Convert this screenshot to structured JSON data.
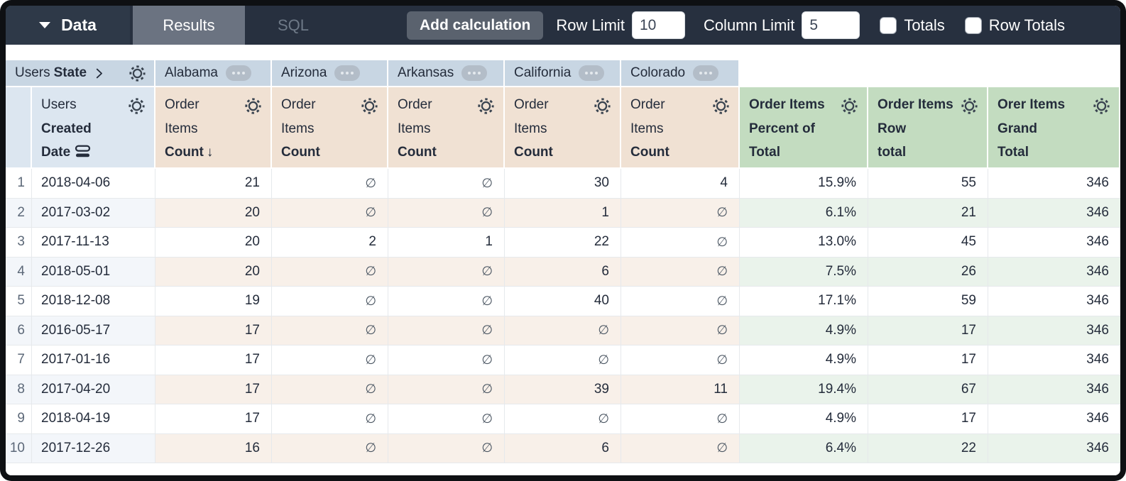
{
  "toolbar": {
    "data_label": "Data",
    "results_label": "Results",
    "sql_label": "SQL",
    "add_calculation_label": "Add calculation",
    "row_limit_label": "Row Limit",
    "row_limit_value": "10",
    "column_limit_label": "Column Limit",
    "column_limit_value": "5",
    "totals_label": "Totals",
    "row_totals_label": "Row Totals"
  },
  "pivot": {
    "dimension_prefix": "Users",
    "dimension_name": "State",
    "states": [
      "Alabama",
      "Arizona",
      "Arkansas",
      "California",
      "Colorado"
    ]
  },
  "columns": {
    "row_dimension": {
      "line1": "Users",
      "line2": "Created",
      "line3": "Date"
    },
    "measure": {
      "line1": "Order",
      "line2": "Items",
      "line3": "Count",
      "sort_arrow": "↓"
    },
    "calc_columns": [
      {
        "lines": [
          "Order Items",
          "Percent of",
          "Total"
        ]
      },
      {
        "lines": [
          "Order Items",
          "Row",
          "total"
        ]
      },
      {
        "lines": [
          "Orer Items",
          "Grand",
          "Total"
        ]
      }
    ]
  },
  "table": {
    "null_symbol": "∅",
    "rows": [
      {
        "index": "1",
        "date": "2018-04-06",
        "values": [
          "21",
          null,
          null,
          "30",
          "4"
        ],
        "percent": "15.9%",
        "row_total": "55",
        "grand_total": "346"
      },
      {
        "index": "2",
        "date": "2017-03-02",
        "values": [
          "20",
          null,
          null,
          "1",
          null
        ],
        "percent": "6.1%",
        "row_total": "21",
        "grand_total": "346"
      },
      {
        "index": "3",
        "date": "2017-11-13",
        "values": [
          "20",
          "2",
          "1",
          "22",
          null
        ],
        "percent": "13.0%",
        "row_total": "45",
        "grand_total": "346"
      },
      {
        "index": "4",
        "date": "2018-05-01",
        "values": [
          "20",
          null,
          null,
          "6",
          null
        ],
        "percent": "7.5%",
        "row_total": "26",
        "grand_total": "346"
      },
      {
        "index": "5",
        "date": "2018-12-08",
        "values": [
          "19",
          null,
          null,
          "40",
          null
        ],
        "percent": "17.1%",
        "row_total": "59",
        "grand_total": "346"
      },
      {
        "index": "6",
        "date": "2016-05-17",
        "values": [
          "17",
          null,
          null,
          null,
          null
        ],
        "percent": "4.9%",
        "row_total": "17",
        "grand_total": "346"
      },
      {
        "index": "7",
        "date": "2017-01-16",
        "values": [
          "17",
          null,
          null,
          null,
          null
        ],
        "percent": "4.9%",
        "row_total": "17",
        "grand_total": "346"
      },
      {
        "index": "8",
        "date": "2017-04-20",
        "values": [
          "17",
          null,
          null,
          "39",
          "11"
        ],
        "percent": "19.4%",
        "row_total": "67",
        "grand_total": "346"
      },
      {
        "index": "9",
        "date": "2018-04-19",
        "values": [
          "17",
          null,
          null,
          null,
          null
        ],
        "percent": "4.9%",
        "row_total": "17",
        "grand_total": "346"
      },
      {
        "index": "10",
        "date": "2017-12-26",
        "values": [
          "16",
          null,
          null,
          "6",
          null
        ],
        "percent": "6.4%",
        "row_total": "22",
        "grand_total": "346"
      }
    ]
  },
  "colors": {
    "toolbar_bg": "#27303F",
    "data_tab_bg": "#2E3948",
    "results_tab_bg": "#6B7381",
    "button_bg": "#5A626E",
    "pivot_header_bg": "#C8D6E3",
    "dimension_header_bg": "#DCE6F0",
    "measure_header_bg": "#F0E1D3",
    "calc_header_bg": "#C3DCC0",
    "row_even_dimension": "#F3F6FA",
    "row_even_measure": "#F8F0E9",
    "row_even_calc": "#EAF3EB"
  },
  "icons": {
    "caret": "caret-down",
    "chevron": "chevron-right",
    "gear": "gear",
    "ellipsis": "ellipsis-menu",
    "sort": "sort-descending",
    "date_field": "date-field"
  }
}
